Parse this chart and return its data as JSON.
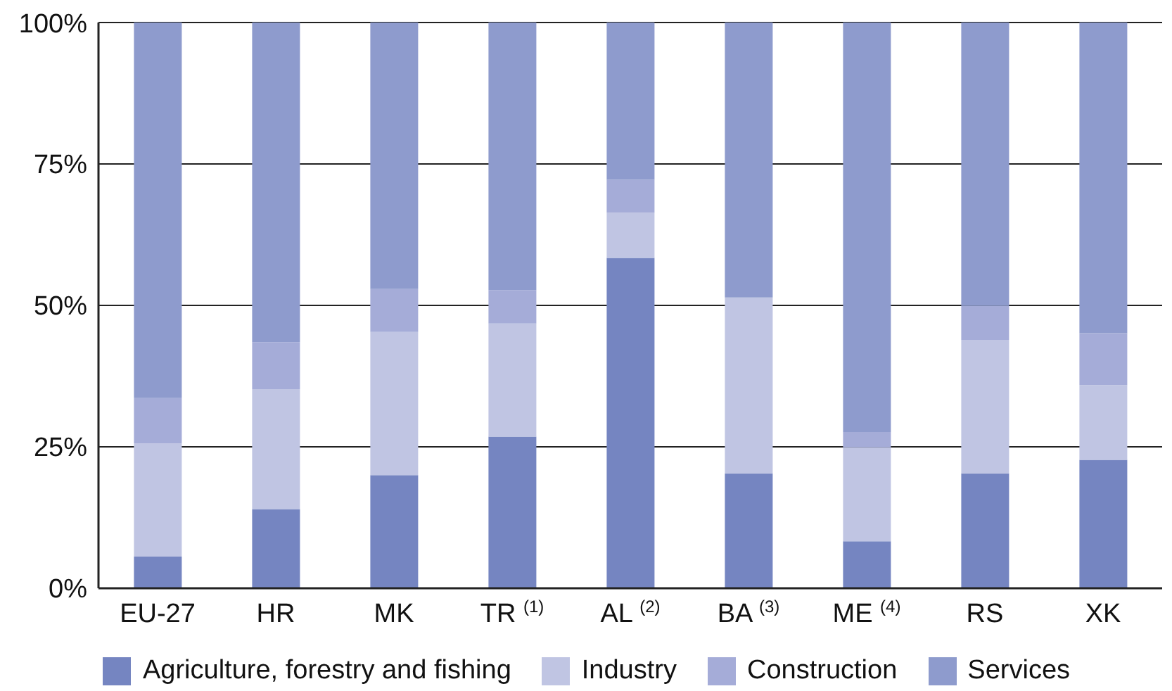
{
  "chart_data": {
    "type": "bar",
    "stacked": true,
    "categories": [
      "EU-27",
      "HR",
      "MK",
      "TR $^{(1)}$",
      "AL $^{(2)}$",
      "BA $^{(3)}$",
      "ME $^{(4)}$",
      "RS",
      "XK"
    ],
    "series": [
      {
        "name": "Agriculture, forestry and fishing",
        "color": "#7585c1",
        "values": [
          5.6,
          14,
          20,
          26.8,
          58.4,
          20.3,
          8.3,
          20.3,
          22.7
        ]
      },
      {
        "name": "Industry",
        "color": "#c0c5e3",
        "values": [
          20,
          21.2,
          25.3,
          20,
          8,
          31.1,
          16.6,
          23.6,
          13.2
        ]
      },
      {
        "name": "Construction",
        "color": "#a5acd8",
        "values": [
          8,
          8.3,
          7.6,
          5.9,
          5.8,
          0,
          2.7,
          6,
          9.2
        ]
      },
      {
        "name": "Services",
        "color": "#8e9bcd",
        "values": [
          66.4,
          56.5,
          47.1,
          47.3,
          27.8,
          48.6,
          72.4,
          50.1,
          54.9
        ]
      }
    ],
    "ylim": [
      0,
      100
    ],
    "yticks": [
      {
        "value": 0,
        "label": "0%"
      },
      {
        "value": 25,
        "label": "25%"
      },
      {
        "value": 50,
        "label": "50%"
      },
      {
        "value": 75,
        "label": "75%"
      },
      {
        "value": 100,
        "label": "100%"
      }
    ],
    "grid": "y",
    "legend": "bottom"
  }
}
